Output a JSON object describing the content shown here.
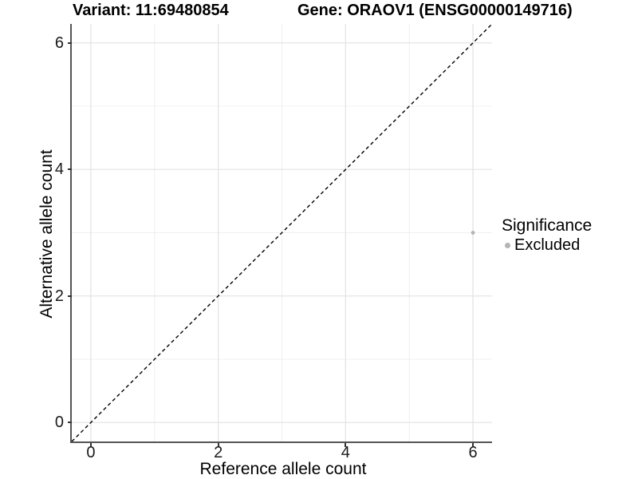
{
  "titles": {
    "variant": "Variant: 11:69480854",
    "gene": "Gene: ORAOV1 (ENSG00000149716)"
  },
  "chart_data": {
    "type": "scatter",
    "title_left": "Variant: 11:69480854",
    "title_right": "Gene: ORAOV1 (ENSG00000149716)",
    "xlabel": "Reference allele count",
    "ylabel": "Alternative allele count",
    "xlim": [
      -0.3,
      6.3
    ],
    "ylim": [
      -0.3,
      6.3
    ],
    "x_ticks": [
      0,
      2,
      4,
      6
    ],
    "y_ticks": [
      0,
      2,
      4,
      6
    ],
    "x_minor_ticks": [
      1,
      3,
      5
    ],
    "y_minor_ticks": [
      1,
      3,
      5
    ],
    "grid": true,
    "identity_line": {
      "type": "abline",
      "slope": 1,
      "intercept": 0,
      "style": "dashed",
      "color": "#000000"
    },
    "series": [
      {
        "name": "Excluded",
        "color": "#b4b4b4",
        "points": [
          {
            "x": 6,
            "y": 3
          }
        ]
      }
    ],
    "legend": {
      "title": "Significance",
      "position": "right",
      "items": [
        {
          "label": "Excluded",
          "color": "#b4b4b4"
        }
      ]
    },
    "colors": {
      "major_grid": "#e4e4e4",
      "minor_grid": "#f0f0f0",
      "axis_line": "#545454",
      "tick_mark": "#333333",
      "point": "#b4b4b4",
      "panel_background": "#ffffff"
    }
  }
}
